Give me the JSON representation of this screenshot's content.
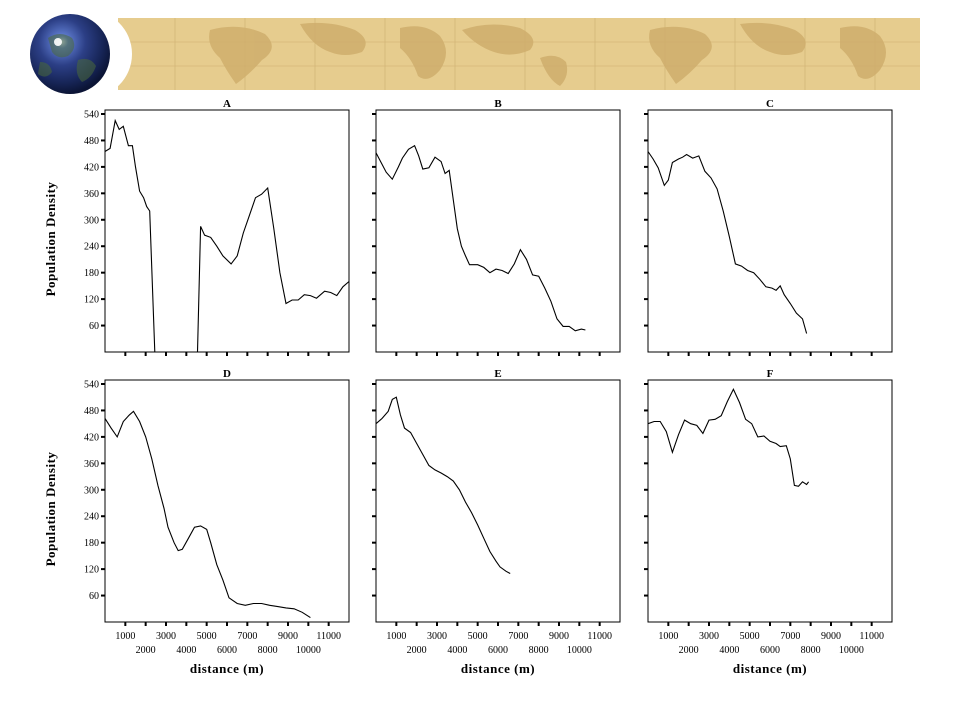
{
  "chart_data": {
    "type": "line",
    "ylabel": "Population Density",
    "xlabel": "distance (m)",
    "ylim": [
      0,
      540
    ],
    "xlim": [
      0,
      12000
    ],
    "y_ticks": [
      60,
      120,
      180,
      240,
      300,
      360,
      420,
      480,
      540
    ],
    "x_ticks_upper": [
      1000,
      3000,
      5000,
      7000,
      9000,
      11000
    ],
    "x_ticks_lower": [
      2000,
      4000,
      6000,
      8000,
      10000
    ],
    "grid": false,
    "panels": [
      {
        "title": "A",
        "segments": [
          [
            [
              0,
              455
            ],
            [
              250,
              462
            ],
            [
              500,
              525
            ],
            [
              700,
              505
            ],
            [
              900,
              512
            ],
            [
              1150,
              468
            ],
            [
              1350,
              468
            ],
            [
              1500,
              420
            ],
            [
              1700,
              365
            ],
            [
              1900,
              350
            ],
            [
              2050,
              330
            ],
            [
              2200,
              320
            ],
            [
              2450,
              0
            ]
          ],
          [
            [
              4550,
              0
            ],
            [
              4700,
              285
            ],
            [
              4900,
              265
            ],
            [
              5200,
              260
            ],
            [
              5500,
              240
            ],
            [
              5800,
              218
            ],
            [
              6200,
              200
            ],
            [
              6500,
              218
            ],
            [
              6800,
              270
            ],
            [
              7100,
              310
            ],
            [
              7400,
              350
            ],
            [
              7700,
              358
            ],
            [
              8000,
              372
            ],
            [
              8300,
              280
            ],
            [
              8600,
              180
            ],
            [
              8900,
              110
            ],
            [
              9200,
              118
            ],
            [
              9500,
              118
            ],
            [
              9800,
              130
            ],
            [
              10100,
              128
            ],
            [
              10400,
              122
            ],
            [
              10800,
              138
            ],
            [
              11100,
              135
            ],
            [
              11400,
              128
            ],
            [
              11700,
              148
            ],
            [
              12000,
              160
            ]
          ]
        ]
      },
      {
        "title": "B",
        "segments": [
          [
            [
              0,
              452
            ],
            [
              250,
              430
            ],
            [
              500,
              408
            ],
            [
              800,
              392
            ],
            [
              1100,
              420
            ],
            [
              1300,
              440
            ],
            [
              1600,
              460
            ],
            [
              1900,
              468
            ],
            [
              2100,
              445
            ],
            [
              2300,
              415
            ],
            [
              2600,
              418
            ],
            [
              2900,
              442
            ],
            [
              3200,
              432
            ],
            [
              3400,
              405
            ],
            [
              3600,
              412
            ],
            [
              3800,
              345
            ],
            [
              4000,
              280
            ],
            [
              4200,
              240
            ],
            [
              4400,
              218
            ],
            [
              4600,
              198
            ],
            [
              5000,
              198
            ],
            [
              5300,
              192
            ],
            [
              5600,
              180
            ],
            [
              5900,
              188
            ],
            [
              6200,
              185
            ],
            [
              6500,
              178
            ],
            [
              6800,
              200
            ],
            [
              7100,
              232
            ],
            [
              7400,
              210
            ],
            [
              7700,
              175
            ],
            [
              8000,
              172
            ],
            [
              8300,
              145
            ],
            [
              8600,
              115
            ],
            [
              8900,
              75
            ],
            [
              9200,
              58
            ],
            [
              9500,
              58
            ],
            [
              9800,
              48
            ],
            [
              10100,
              52
            ],
            [
              10300,
              50
            ]
          ]
        ]
      },
      {
        "title": "C",
        "segments": [
          [
            [
              0,
              455
            ],
            [
              250,
              438
            ],
            [
              500,
              418
            ],
            [
              800,
              378
            ],
            [
              1000,
              390
            ],
            [
              1200,
              430
            ],
            [
              1500,
              438
            ],
            [
              1700,
              442
            ],
            [
              1900,
              448
            ],
            [
              2200,
              440
            ],
            [
              2500,
              445
            ],
            [
              2800,
              410
            ],
            [
              3100,
              395
            ],
            [
              3400,
              370
            ],
            [
              3700,
              320
            ],
            [
              4000,
              262
            ],
            [
              4300,
              200
            ],
            [
              4600,
              195
            ],
            [
              4900,
              185
            ],
            [
              5200,
              180
            ],
            [
              5500,
              165
            ],
            [
              5800,
              148
            ],
            [
              6100,
              145
            ],
            [
              6300,
              140
            ],
            [
              6500,
              150
            ],
            [
              6700,
              130
            ],
            [
              7000,
              110
            ],
            [
              7300,
              88
            ],
            [
              7600,
              75
            ],
            [
              7800,
              42
            ]
          ]
        ]
      },
      {
        "title": "D",
        "segments": [
          [
            [
              0,
              462
            ],
            [
              300,
              440
            ],
            [
              600,
              420
            ],
            [
              900,
              455
            ],
            [
              1200,
              470
            ],
            [
              1400,
              478
            ],
            [
              1700,
              455
            ],
            [
              2000,
              420
            ],
            [
              2300,
              370
            ],
            [
              2600,
              310
            ],
            [
              2900,
              258
            ],
            [
              3100,
              215
            ],
            [
              3400,
              180
            ],
            [
              3600,
              162
            ],
            [
              3800,
              165
            ],
            [
              4100,
              190
            ],
            [
              4400,
              215
            ],
            [
              4700,
              218
            ],
            [
              5000,
              210
            ],
            [
              5200,
              180
            ],
            [
              5500,
              130
            ],
            [
              5800,
              95
            ],
            [
              6100,
              55
            ],
            [
              6500,
              42
            ],
            [
              6900,
              38
            ],
            [
              7300,
              42
            ],
            [
              7700,
              42
            ],
            [
              8100,
              38
            ],
            [
              8500,
              35
            ],
            [
              8900,
              32
            ],
            [
              9300,
              30
            ],
            [
              9700,
              22
            ],
            [
              10100,
              10
            ]
          ]
        ]
      },
      {
        "title": "E",
        "segments": [
          [
            [
              0,
              450
            ],
            [
              300,
              462
            ],
            [
              600,
              478
            ],
            [
              800,
              505
            ],
            [
              1000,
              510
            ],
            [
              1200,
              470
            ],
            [
              1400,
              440
            ],
            [
              1700,
              430
            ],
            [
              2000,
              405
            ],
            [
              2300,
              380
            ],
            [
              2600,
              355
            ],
            [
              2900,
              345
            ],
            [
              3200,
              338
            ],
            [
              3500,
              330
            ],
            [
              3800,
              320
            ],
            [
              4100,
              300
            ],
            [
              4400,
              272
            ],
            [
              4700,
              248
            ],
            [
              5000,
              220
            ],
            [
              5300,
              190
            ],
            [
              5600,
              160
            ],
            [
              5900,
              138
            ],
            [
              6100,
              125
            ],
            [
              6400,
              115
            ],
            [
              6600,
              110
            ]
          ]
        ]
      },
      {
        "title": "F",
        "segments": [
          [
            [
              0,
              450
            ],
            [
              300,
              455
            ],
            [
              600,
              455
            ],
            [
              900,
              432
            ],
            [
              1200,
              385
            ],
            [
              1500,
              425
            ],
            [
              1800,
              458
            ],
            [
              2100,
              450
            ],
            [
              2400,
              446
            ],
            [
              2700,
              428
            ],
            [
              3000,
              458
            ],
            [
              3300,
              460
            ],
            [
              3600,
              468
            ],
            [
              3900,
              500
            ],
            [
              4200,
              528
            ],
            [
              4500,
              498
            ],
            [
              4800,
              460
            ],
            [
              5100,
              450
            ],
            [
              5400,
              420
            ],
            [
              5700,
              422
            ],
            [
              6000,
              410
            ],
            [
              6300,
              405
            ],
            [
              6500,
              398
            ],
            [
              6800,
              400
            ],
            [
              7000,
              370
            ],
            [
              7200,
              310
            ],
            [
              7400,
              308
            ],
            [
              7600,
              318
            ],
            [
              7800,
              312
            ],
            [
              7900,
              318
            ]
          ]
        ]
      }
    ]
  }
}
